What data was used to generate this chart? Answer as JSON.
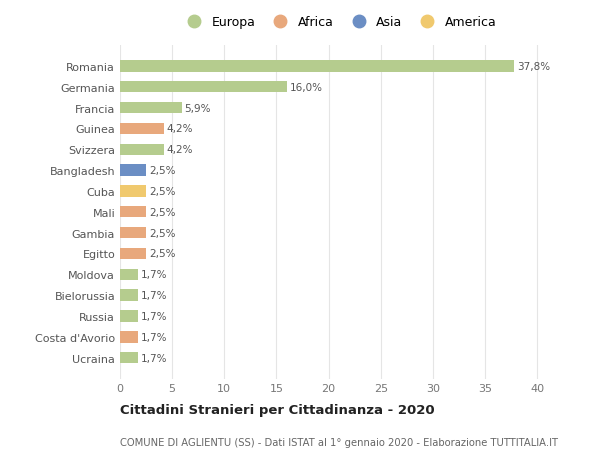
{
  "categories": [
    "Romania",
    "Germania",
    "Francia",
    "Guinea",
    "Svizzera",
    "Bangladesh",
    "Cuba",
    "Mali",
    "Gambia",
    "Egitto",
    "Moldova",
    "Bielorussia",
    "Russia",
    "Costa d'Avorio",
    "Ucraina"
  ],
  "values": [
    37.8,
    16.0,
    5.9,
    4.2,
    4.2,
    2.5,
    2.5,
    2.5,
    2.5,
    2.5,
    1.7,
    1.7,
    1.7,
    1.7,
    1.7
  ],
  "labels": [
    "37,8%",
    "16,0%",
    "5,9%",
    "4,2%",
    "4,2%",
    "2,5%",
    "2,5%",
    "2,5%",
    "2,5%",
    "2,5%",
    "1,7%",
    "1,7%",
    "1,7%",
    "1,7%",
    "1,7%"
  ],
  "continents": [
    "Europa",
    "Europa",
    "Europa",
    "Africa",
    "Europa",
    "Asia",
    "America",
    "Africa",
    "Africa",
    "Africa",
    "Europa",
    "Europa",
    "Europa",
    "Africa",
    "Europa"
  ],
  "continent_colors": {
    "Europa": "#b5cc8e",
    "Africa": "#e8a87c",
    "Asia": "#6b8ec4",
    "America": "#f0c96e"
  },
  "legend_order": [
    "Europa",
    "Africa",
    "Asia",
    "America"
  ],
  "xlim": [
    0,
    42
  ],
  "xticks": [
    0,
    5,
    10,
    15,
    20,
    25,
    30,
    35,
    40
  ],
  "title": "Cittadini Stranieri per Cittadinanza - 2020",
  "subtitle": "COMUNE DI AGLIENTU (SS) - Dati ISTAT al 1° gennaio 2020 - Elaborazione TUTTITALIA.IT",
  "background_color": "#ffffff",
  "grid_color": "#e5e5e5",
  "bar_height": 0.55
}
